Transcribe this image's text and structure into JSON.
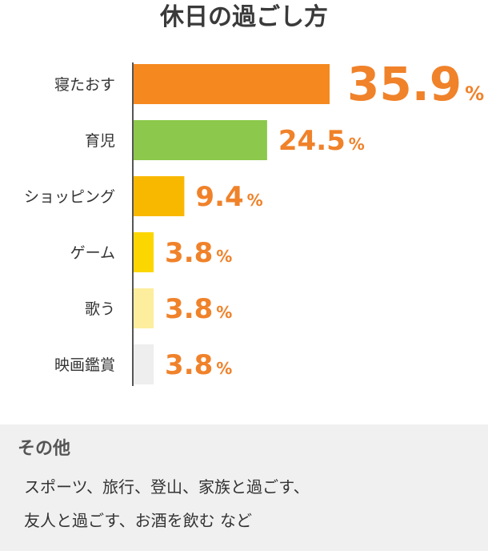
{
  "chart_data": {
    "type": "bar",
    "orientation": "horizontal",
    "title": "休日の過ごし方",
    "categories": [
      "寝たおす",
      "育児",
      "ショッピング",
      "ゲーム",
      "歌う",
      "映画鑑賞"
    ],
    "values": [
      35.9,
      24.5,
      9.4,
      3.8,
      3.8,
      3.8
    ],
    "value_labels": [
      "35.9",
      "24.5",
      "9.4",
      "3.8",
      "3.8",
      "3.8"
    ],
    "unit": "%",
    "colors": [
      "#f5891f",
      "#8cc84b",
      "#f9b800",
      "#fcd600",
      "#fdee9e",
      "#eeeeee"
    ],
    "label_color": "#f0822a",
    "grid": false,
    "legend": "none"
  },
  "other": {
    "heading": "その他",
    "line1": "スポーツ、旅行、登山、家族と過ごす、",
    "line2": "友人と過ごす、お酒を飲む など",
    "background": "#f0f0f0"
  }
}
